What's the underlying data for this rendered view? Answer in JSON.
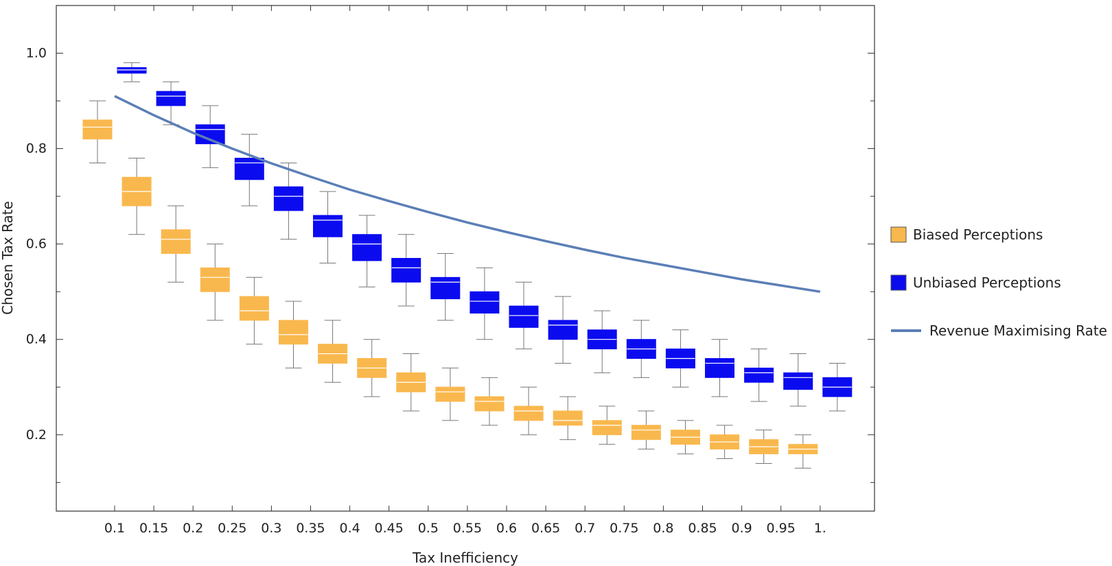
{
  "chart_data": {
    "type": "box",
    "xlabel": "Tax Inefficiency",
    "ylabel": "Chosen Tax Rate",
    "ylim": [
      0.04,
      1.1
    ],
    "yticks": [
      0.2,
      0.4,
      0.6,
      0.8,
      1.0
    ],
    "ytick_labels": [
      "0.2",
      "0.4",
      "0.6",
      "0.8",
      "1.0"
    ],
    "categories": [
      "0.1",
      "0.15",
      "0.2",
      "0.25",
      "0.3",
      "0.35",
      "0.4",
      "0.45",
      "0.5",
      "0.55",
      "0.6",
      "0.65",
      "0.7",
      "0.75",
      "0.8",
      "0.85",
      "0.9",
      "0.95",
      "1."
    ],
    "x": [
      0.1,
      0.15,
      0.2,
      0.25,
      0.3,
      0.35,
      0.4,
      0.45,
      0.5,
      0.55,
      0.6,
      0.65,
      0.7,
      0.75,
      0.8,
      0.85,
      0.9,
      0.95,
      1.0
    ],
    "grid": false,
    "legend_position": "right",
    "series": [
      {
        "name": "Biased Perceptions",
        "kind": "box",
        "color": "#f9b84e",
        "boxes": [
          {
            "min": 0.77,
            "q1": 0.82,
            "median": 0.845,
            "q3": 0.86,
            "max": 0.9
          },
          {
            "min": 0.62,
            "q1": 0.68,
            "median": 0.71,
            "q3": 0.74,
            "max": 0.78
          },
          {
            "min": 0.52,
            "q1": 0.58,
            "median": 0.61,
            "q3": 0.63,
            "max": 0.68
          },
          {
            "min": 0.44,
            "q1": 0.5,
            "median": 0.53,
            "q3": 0.55,
            "max": 0.6
          },
          {
            "min": 0.39,
            "q1": 0.44,
            "median": 0.46,
            "q3": 0.49,
            "max": 0.53
          },
          {
            "min": 0.34,
            "q1": 0.39,
            "median": 0.41,
            "q3": 0.44,
            "max": 0.48
          },
          {
            "min": 0.31,
            "q1": 0.35,
            "median": 0.37,
            "q3": 0.39,
            "max": 0.44
          },
          {
            "min": 0.28,
            "q1": 0.32,
            "median": 0.34,
            "q3": 0.36,
            "max": 0.4
          },
          {
            "min": 0.25,
            "q1": 0.29,
            "median": 0.31,
            "q3": 0.33,
            "max": 0.37
          },
          {
            "min": 0.23,
            "q1": 0.27,
            "median": 0.29,
            "q3": 0.3,
            "max": 0.34
          },
          {
            "min": 0.22,
            "q1": 0.25,
            "median": 0.27,
            "q3": 0.28,
            "max": 0.32
          },
          {
            "min": 0.2,
            "q1": 0.23,
            "median": 0.25,
            "q3": 0.26,
            "max": 0.3
          },
          {
            "min": 0.19,
            "q1": 0.22,
            "median": 0.23,
            "q3": 0.25,
            "max": 0.28
          },
          {
            "min": 0.18,
            "q1": 0.2,
            "median": 0.22,
            "q3": 0.23,
            "max": 0.26
          },
          {
            "min": 0.17,
            "q1": 0.19,
            "median": 0.21,
            "q3": 0.22,
            "max": 0.25
          },
          {
            "min": 0.16,
            "q1": 0.18,
            "median": 0.195,
            "q3": 0.21,
            "max": 0.23
          },
          {
            "min": 0.15,
            "q1": 0.17,
            "median": 0.185,
            "q3": 0.2,
            "max": 0.22
          },
          {
            "min": 0.14,
            "q1": 0.16,
            "median": 0.175,
            "q3": 0.19,
            "max": 0.21
          },
          {
            "min": 0.13,
            "q1": 0.16,
            "median": 0.17,
            "q3": 0.18,
            "max": 0.2
          }
        ]
      },
      {
        "name": "Unbiased Perceptions",
        "kind": "box",
        "color": "#0b0bf0",
        "boxes": [
          {
            "min": 0.94,
            "q1": 0.958,
            "median": 0.965,
            "q3": 0.97,
            "max": 0.98
          },
          {
            "min": 0.85,
            "q1": 0.89,
            "median": 0.91,
            "q3": 0.92,
            "max": 0.94
          },
          {
            "min": 0.76,
            "q1": 0.81,
            "median": 0.84,
            "q3": 0.85,
            "max": 0.89
          },
          {
            "min": 0.68,
            "q1": 0.735,
            "median": 0.77,
            "q3": 0.78,
            "max": 0.83
          },
          {
            "min": 0.61,
            "q1": 0.67,
            "median": 0.7,
            "q3": 0.72,
            "max": 0.77
          },
          {
            "min": 0.56,
            "q1": 0.615,
            "median": 0.65,
            "q3": 0.66,
            "max": 0.71
          },
          {
            "min": 0.51,
            "q1": 0.565,
            "median": 0.6,
            "q3": 0.62,
            "max": 0.66
          },
          {
            "min": 0.47,
            "q1": 0.52,
            "median": 0.55,
            "q3": 0.57,
            "max": 0.62
          },
          {
            "min": 0.44,
            "q1": 0.485,
            "median": 0.52,
            "q3": 0.53,
            "max": 0.58
          },
          {
            "min": 0.4,
            "q1": 0.455,
            "median": 0.48,
            "q3": 0.5,
            "max": 0.55
          },
          {
            "min": 0.38,
            "q1": 0.425,
            "median": 0.45,
            "q3": 0.47,
            "max": 0.52
          },
          {
            "min": 0.35,
            "q1": 0.4,
            "median": 0.43,
            "q3": 0.44,
            "max": 0.49
          },
          {
            "min": 0.33,
            "q1": 0.38,
            "median": 0.4,
            "q3": 0.42,
            "max": 0.46
          },
          {
            "min": 0.32,
            "q1": 0.36,
            "median": 0.38,
            "q3": 0.4,
            "max": 0.44
          },
          {
            "min": 0.3,
            "q1": 0.34,
            "median": 0.36,
            "q3": 0.38,
            "max": 0.42
          },
          {
            "min": 0.28,
            "q1": 0.32,
            "median": 0.35,
            "q3": 0.36,
            "max": 0.4
          },
          {
            "min": 0.27,
            "q1": 0.31,
            "median": 0.33,
            "q3": 0.34,
            "max": 0.38
          },
          {
            "min": 0.26,
            "q1": 0.295,
            "median": 0.32,
            "q3": 0.33,
            "max": 0.37
          },
          {
            "min": 0.25,
            "q1": 0.28,
            "median": 0.3,
            "q3": 0.32,
            "max": 0.35
          }
        ]
      },
      {
        "name": "Revenue Maximising Rate",
        "kind": "line",
        "color": "#5b7fb6",
        "values": [
          0.91,
          0.87,
          0.833,
          0.8,
          0.769,
          0.741,
          0.714,
          0.69,
          0.667,
          0.645,
          0.625,
          0.606,
          0.588,
          0.571,
          0.556,
          0.541,
          0.526,
          0.513,
          0.5
        ]
      }
    ]
  }
}
